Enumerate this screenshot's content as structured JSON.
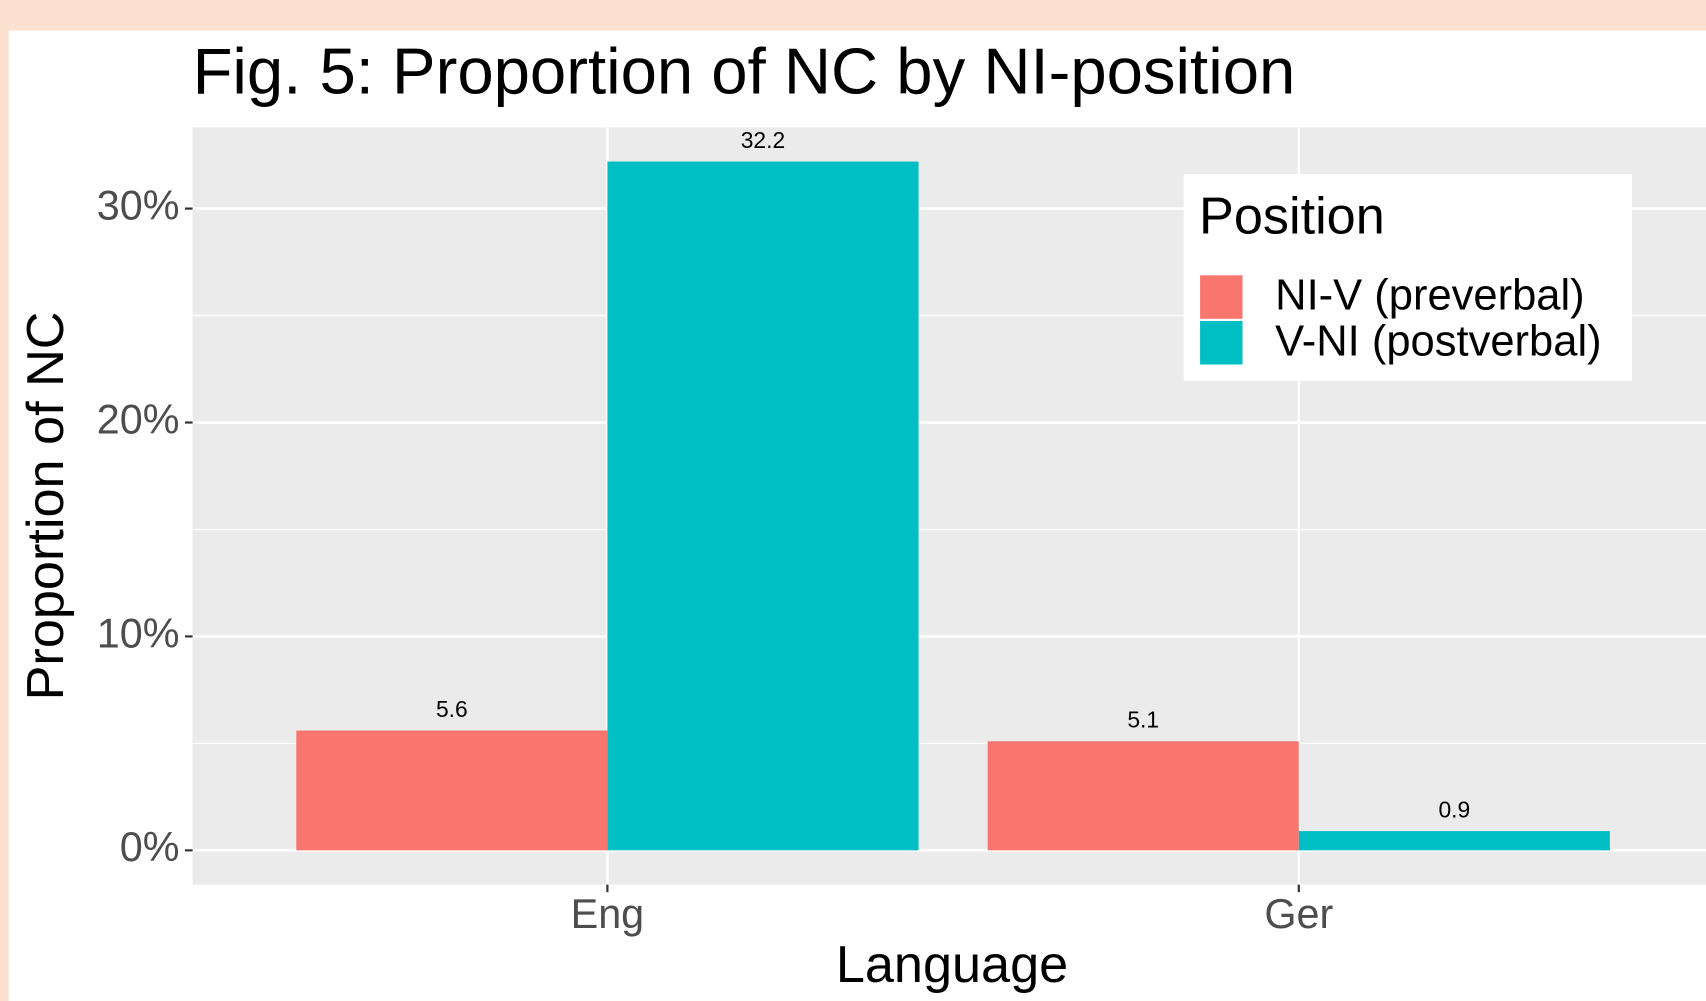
{
  "chart_data": {
    "type": "bar",
    "title": "Fig. 5: Proportion of NC by NI-position",
    "x_label": "Language",
    "y_label": "Proportion of NC",
    "legend_title": "Position",
    "legend_position": "top-right",
    "categories": [
      "Eng",
      "Ger"
    ],
    "series": [
      {
        "name": "NI-V (preverbal)",
        "color": "#f8766d",
        "values": [
          5.6,
          5.1
        ]
      },
      {
        "name": "V-NI (postverbal)",
        "color": "#00bfc4",
        "values": [
          32.2,
          0.9
        ]
      }
    ],
    "ylim": [
      -1.6,
      33.8
    ],
    "yticks": [
      {
        "value": 0,
        "label": "0%"
      },
      {
        "value": 10,
        "label": "10%"
      },
      {
        "value": 20,
        "label": "20%"
      },
      {
        "value": 30,
        "label": "30%"
      }
    ],
    "minor_yticks": [
      5,
      15,
      25
    ],
    "grid": true
  }
}
